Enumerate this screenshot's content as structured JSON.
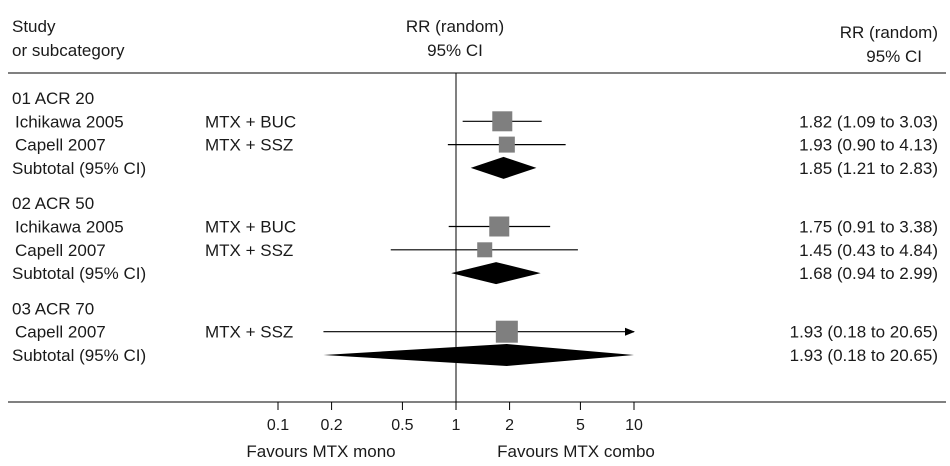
{
  "header": {
    "study_line1": "Study",
    "study_line2": "or subcategory",
    "mid_line1": "RR (random)",
    "mid_line2": "95% CI",
    "right_line1": "RR (random)",
    "right_line2": "95% CI"
  },
  "chart_data": {
    "type": "forest",
    "x_scale": "log",
    "xlim": [
      0.1,
      10
    ],
    "reference_line": 1,
    "ticks": [
      0.1,
      0.2,
      0.5,
      1,
      2,
      5,
      10
    ],
    "tick_labels": [
      "0.1",
      "0.2",
      "0.5",
      "1",
      "2",
      "5",
      "10"
    ],
    "xlabel_left": "Favours MTX mono",
    "xlabel_right": "Favours MTX combo",
    "colors": {
      "square": "#7f7f7f",
      "diamond": "#000000",
      "line": "#000000"
    },
    "groups": [
      {
        "label": "01 ACR 20",
        "studies": [
          {
            "study": "Ichikawa 2005",
            "comparison": "MTX + BUC",
            "rr": 1.82,
            "lower": 1.09,
            "upper": 3.03,
            "weight": 1.0,
            "ci_text": "1.82 (1.09 to 3.03)"
          },
          {
            "study": "Capell 2007",
            "comparison": "MTX + SSZ",
            "rr": 1.93,
            "lower": 0.9,
            "upper": 4.13,
            "weight": 0.6,
            "ci_text": "1.93 (0.90 to 4.13)"
          }
        ],
        "subtotal": {
          "label": "Subtotal (95% CI)",
          "rr": 1.85,
          "lower": 1.21,
          "upper": 2.83,
          "ci_text": "1.85 (1.21 to 2.83)"
        }
      },
      {
        "label": "02 ACR 50",
        "studies": [
          {
            "study": "Ichikawa 2005",
            "comparison": "MTX + BUC",
            "rr": 1.75,
            "lower": 0.91,
            "upper": 3.38,
            "weight": 1.0,
            "ci_text": "1.75 (0.91 to 3.38)"
          },
          {
            "study": "Capell 2007",
            "comparison": "MTX + SSZ",
            "rr": 1.45,
            "lower": 0.43,
            "upper": 4.84,
            "weight": 0.5,
            "ci_text": "1.45 (0.43 to 4.84)"
          }
        ],
        "subtotal": {
          "label": "Subtotal (95% CI)",
          "rr": 1.68,
          "lower": 0.94,
          "upper": 2.99,
          "ci_text": "1.68 (0.94 to 2.99)"
        }
      },
      {
        "label": "03 ACR 70",
        "studies": [
          {
            "study": "Capell 2007",
            "comparison": "MTX + SSZ",
            "rr": 1.93,
            "lower": 0.18,
            "upper": 20.65,
            "weight": 1.2,
            "ci_text": "1.93 (0.18 to 20.65)"
          }
        ],
        "subtotal": {
          "label": "Subtotal (95% CI)",
          "rr": 1.93,
          "lower": 0.18,
          "upper": 20.65,
          "ci_text": "1.93 (0.18 to 20.65)"
        }
      }
    ]
  }
}
